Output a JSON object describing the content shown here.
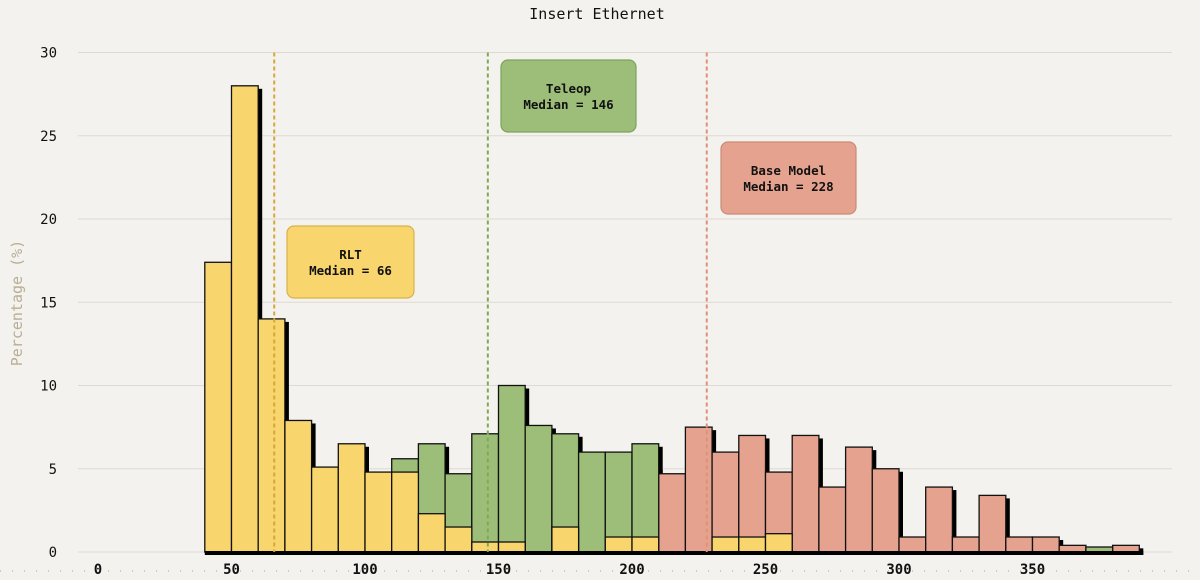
{
  "chart_data": {
    "type": "bar",
    "title": "Insert Ethernet",
    "ylabel": "Percentage (%)",
    "xlabel": "",
    "xlim": [
      -15,
      395
    ],
    "ylim": [
      0,
      30
    ],
    "xticks": [
      0,
      50,
      100,
      150,
      200,
      250,
      300,
      350
    ],
    "yticks": [
      0,
      5,
      10,
      15,
      20,
      25,
      30
    ],
    "bin_width": 10,
    "grid": "horizontal",
    "series": [
      {
        "name": "Base Model",
        "color": "#e5a38f",
        "bins": [
          [
            140,
            1.3
          ],
          [
            160,
            0.4
          ],
          [
            180,
            4.9
          ],
          [
            190,
            2.4
          ],
          [
            200,
            5.1
          ],
          [
            210,
            4.7
          ],
          [
            220,
            7.5
          ],
          [
            230,
            6.0
          ],
          [
            240,
            7.0
          ],
          [
            250,
            4.8
          ],
          [
            260,
            7.0
          ],
          [
            270,
            3.9
          ],
          [
            280,
            6.3
          ],
          [
            290,
            5.0
          ],
          [
            300,
            0.9
          ],
          [
            310,
            3.9
          ],
          [
            320,
            0.9
          ],
          [
            330,
            3.4
          ],
          [
            340,
            0.9
          ],
          [
            350,
            0.9
          ],
          [
            360,
            0.4
          ],
          [
            370,
            0.1
          ],
          [
            380,
            0.4
          ]
        ]
      },
      {
        "name": "Teleop",
        "color": "#9dbe79",
        "bins": [
          [
            110,
            5.6
          ],
          [
            120,
            6.5
          ],
          [
            130,
            4.7
          ],
          [
            140,
            7.1
          ],
          [
            150,
            10.0
          ],
          [
            160,
            7.6
          ],
          [
            170,
            7.1
          ],
          [
            180,
            6.0
          ],
          [
            190,
            6.0
          ],
          [
            200,
            6.5
          ],
          [
            370,
            0.3
          ]
        ]
      },
      {
        "name": "RLT",
        "color": "#f9d56e",
        "bins": [
          [
            40,
            17.4
          ],
          [
            50,
            28.0
          ],
          [
            60,
            14.0
          ],
          [
            70,
            7.9
          ],
          [
            80,
            5.1
          ],
          [
            90,
            6.5
          ],
          [
            100,
            4.8
          ],
          [
            110,
            4.8
          ],
          [
            120,
            2.3
          ],
          [
            130,
            1.5
          ],
          [
            140,
            0.6
          ],
          [
            150,
            0.6
          ],
          [
            170,
            1.5
          ],
          [
            190,
            0.9
          ],
          [
            200,
            0.9
          ],
          [
            230,
            0.9
          ],
          [
            240,
            0.9
          ],
          [
            250,
            1.1
          ]
        ]
      }
    ],
    "medians": [
      {
        "series": "RLT",
        "value": 66,
        "color": "#d4a83a"
      },
      {
        "series": "Teleop",
        "value": 146,
        "color": "#7faa55"
      },
      {
        "series": "Base Model",
        "value": 228,
        "color": "#e0917a"
      }
    ],
    "annotations": [
      {
        "line1": "RLT",
        "line2": "Median = 66",
        "fill": "#f9d56e",
        "stroke": "#d8b24a"
      },
      {
        "line1": "Teleop",
        "line2": "Median = 146",
        "fill": "#9dbe79",
        "stroke": "#7ea35a"
      },
      {
        "line1": "Base Model",
        "line2": "Median = 228",
        "fill": "#e5a38f",
        "stroke": "#c98c78"
      }
    ],
    "legend": "none"
  }
}
